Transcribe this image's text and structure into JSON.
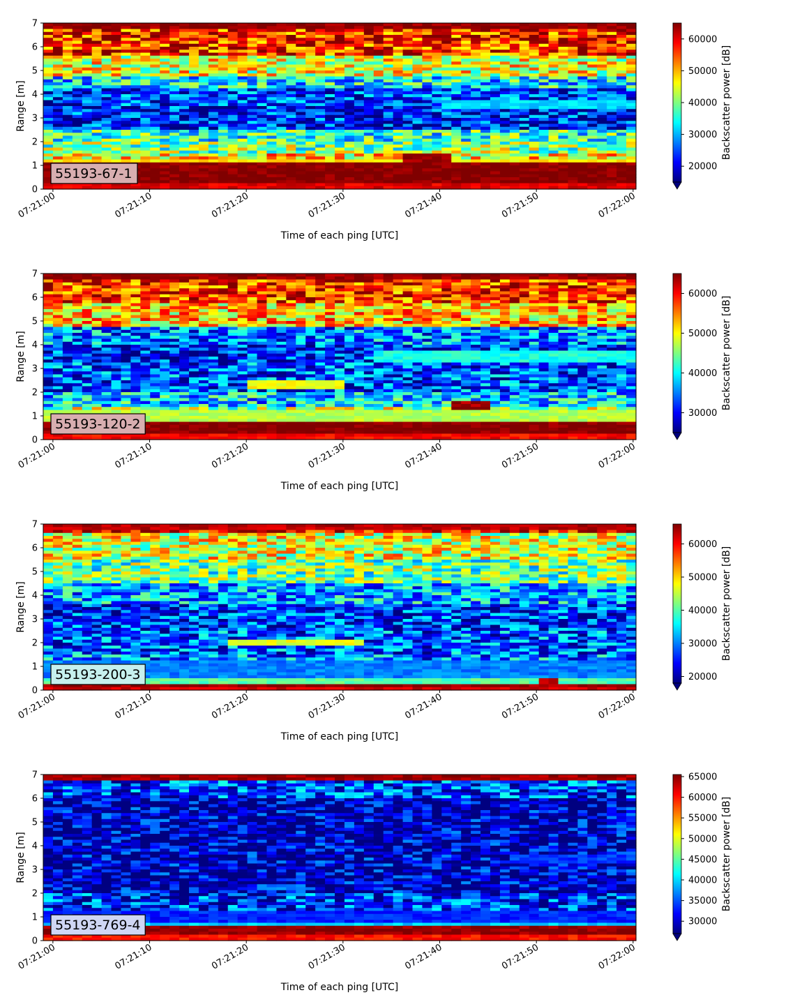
{
  "chart_data": [
    {
      "type": "heatmap",
      "panel_label": "55193-67-1",
      "panel_label_bg": "#d8aeb0",
      "xlabel": "Time of each ping [UTC]",
      "ylabel": "Range [m]",
      "xticks": [
        "07:21:00",
        "07:21:10",
        "07:21:20",
        "07:21:30",
        "07:21:40",
        "07:21:50",
        "07:22:00"
      ],
      "xlim_seconds": [
        -1,
        60.3
      ],
      "yticks": [
        0,
        1,
        2,
        3,
        4,
        5,
        6,
        7
      ],
      "ylim": [
        0,
        7
      ],
      "colorbar_label": "Backscatter power [dB]",
      "colorbar_ticks": [
        20000,
        30000,
        40000,
        50000,
        60000
      ],
      "colorbar_range": [
        15000,
        65000
      ],
      "colorbar_extend": "min",
      "colormap": "jet",
      "layers": [
        {
          "from": 0.0,
          "to": 0.2,
          "value": 60000
        },
        {
          "from": 0.2,
          "to": 1.1,
          "value": 65000
        },
        {
          "from": 1.1,
          "to": 1.5,
          "value": 47000
        },
        {
          "from": 1.5,
          "to": 2.0,
          "value": 40000
        },
        {
          "from": 2.0,
          "to": 2.5,
          "value": 36000
        },
        {
          "from": 2.5,
          "to": 3.5,
          "value": 22000
        },
        {
          "from": 3.5,
          "to": 4.2,
          "value": 24000
        },
        {
          "from": 4.2,
          "to": 4.8,
          "value": 33000
        },
        {
          "from": 4.8,
          "to": 5.6,
          "value": 45000
        },
        {
          "from": 5.6,
          "to": 6.7,
          "value": 57000
        },
        {
          "from": 6.7,
          "to": 7.0,
          "value": 64000
        }
      ],
      "features": [
        {
          "t0": 36,
          "t1": 41,
          "r0": 1.1,
          "r1": 1.5,
          "value": 63000
        },
        {
          "t0": 40,
          "t1": 60,
          "r0": 3.4,
          "r1": 3.7,
          "value": 32000
        }
      ]
    },
    {
      "type": "heatmap",
      "panel_label": "55193-120-2",
      "panel_label_bg": "#d8aeb0",
      "xlabel": "Time of each ping [UTC]",
      "ylabel": "Range [m]",
      "xticks": [
        "07:21:00",
        "07:21:10",
        "07:21:20",
        "07:21:30",
        "07:21:40",
        "07:21:50",
        "07:22:00"
      ],
      "xlim_seconds": [
        -1,
        60.3
      ],
      "yticks": [
        0,
        1,
        2,
        3,
        4,
        5,
        6,
        7
      ],
      "ylim": [
        0,
        7
      ],
      "colorbar_label": "Backscatter power [dB]",
      "colorbar_ticks": [
        30000,
        40000,
        50000,
        60000
      ],
      "colorbar_range": [
        25000,
        65000
      ],
      "colorbar_extend": "min",
      "colormap": "jet",
      "layers": [
        {
          "from": 0.0,
          "to": 0.2,
          "value": 60000
        },
        {
          "from": 0.2,
          "to": 0.8,
          "value": 65000
        },
        {
          "from": 0.8,
          "to": 1.4,
          "value": 47000
        },
        {
          "from": 1.4,
          "to": 2.0,
          "value": 38000
        },
        {
          "from": 2.0,
          "to": 3.3,
          "value": 33000
        },
        {
          "from": 3.3,
          "to": 4.0,
          "value": 31000
        },
        {
          "from": 4.0,
          "to": 4.8,
          "value": 35000
        },
        {
          "from": 4.8,
          "to": 5.8,
          "value": 52000
        },
        {
          "from": 5.8,
          "to": 6.7,
          "value": 58000
        },
        {
          "from": 6.7,
          "to": 7.0,
          "value": 64000
        }
      ],
      "features": [
        {
          "t0": 20,
          "t1": 30,
          "r0": 2.1,
          "r1": 2.5,
          "value": 50000
        },
        {
          "t0": 41,
          "t1": 45,
          "r0": 1.2,
          "r1": 1.6,
          "value": 64000
        },
        {
          "t0": 33,
          "t1": 60,
          "r0": 3.2,
          "r1": 3.7,
          "value": 41000
        }
      ]
    },
    {
      "type": "heatmap",
      "panel_label": "55193-200-3",
      "panel_label_bg": "#c6f0ee",
      "xlabel": "Time of each ping [UTC]",
      "ylabel": "Range [m]",
      "xticks": [
        "07:21:00",
        "07:21:10",
        "07:21:20",
        "07:21:30",
        "07:21:40",
        "07:21:50",
        "07:22:00"
      ],
      "xlim_seconds": [
        -1,
        60.3
      ],
      "yticks": [
        0,
        1,
        2,
        3,
        4,
        5,
        6,
        7
      ],
      "ylim": [
        0,
        7
      ],
      "colorbar_label": "Backscatter power [dB]",
      "colorbar_ticks": [
        20000,
        30000,
        40000,
        50000,
        60000
      ],
      "colorbar_range": [
        18000,
        66000
      ],
      "colorbar_extend": "min",
      "colormap": "jet",
      "layers": [
        {
          "from": 0.0,
          "to": 0.1,
          "value": 62000
        },
        {
          "from": 0.1,
          "to": 0.3,
          "value": 65000
        },
        {
          "from": 0.3,
          "to": 0.5,
          "value": 40000
        },
        {
          "from": 0.5,
          "to": 1.5,
          "value": 30000
        },
        {
          "from": 1.5,
          "to": 2.5,
          "value": 28000
        },
        {
          "from": 2.5,
          "to": 3.6,
          "value": 26000
        },
        {
          "from": 3.6,
          "to": 4.5,
          "value": 32000
        },
        {
          "from": 4.5,
          "to": 5.5,
          "value": 41000
        },
        {
          "from": 5.5,
          "to": 6.6,
          "value": 47000
        },
        {
          "from": 6.6,
          "to": 7.0,
          "value": 63000
        }
      ],
      "features": [
        {
          "t0": 18,
          "t1": 32,
          "r0": 1.9,
          "r1": 2.1,
          "value": 47000
        },
        {
          "t0": 50,
          "t1": 52,
          "r0": 0.3,
          "r1": 0.5,
          "value": 62000
        }
      ]
    },
    {
      "type": "heatmap",
      "panel_label": "55193-769-4",
      "panel_label_bg": "#cfd6f4",
      "xlabel": "Time of each ping [UTC]",
      "ylabel": "Range [m]",
      "xticks": [
        "07:21:00",
        "07:21:10",
        "07:21:20",
        "07:21:30",
        "07:21:40",
        "07:21:50",
        "07:22:00"
      ],
      "xlim_seconds": [
        -1,
        60.3
      ],
      "yticks": [
        0,
        1,
        2,
        3,
        4,
        5,
        6,
        7
      ],
      "ylim": [
        0,
        7
      ],
      "colorbar_label": "Backscatter power [dB]",
      "colorbar_ticks": [
        30000,
        35000,
        40000,
        45000,
        50000,
        55000,
        60000,
        65000
      ],
      "colorbar_range": [
        27000,
        65500
      ],
      "colorbar_extend": "min",
      "colormap": "jet",
      "layers": [
        {
          "from": 0.0,
          "to": 0.2,
          "value": 60000
        },
        {
          "from": 0.2,
          "to": 0.65,
          "value": 65000
        },
        {
          "from": 0.65,
          "to": 0.8,
          "value": 40000
        },
        {
          "from": 0.8,
          "to": 2.0,
          "value": 33000
        },
        {
          "from": 2.0,
          "to": 6.0,
          "value": 29000
        },
        {
          "from": 6.0,
          "to": 6.7,
          "value": 34000
        },
        {
          "from": 6.7,
          "to": 7.0,
          "value": 64000
        }
      ],
      "features": [
        {
          "t0": 21,
          "t1": 26,
          "r0": 2.1,
          "r1": 2.4,
          "value": 36000
        },
        {
          "t0": 47,
          "t1": 60,
          "r0": 3.3,
          "r1": 3.6,
          "value": 34000
        }
      ]
    }
  ]
}
